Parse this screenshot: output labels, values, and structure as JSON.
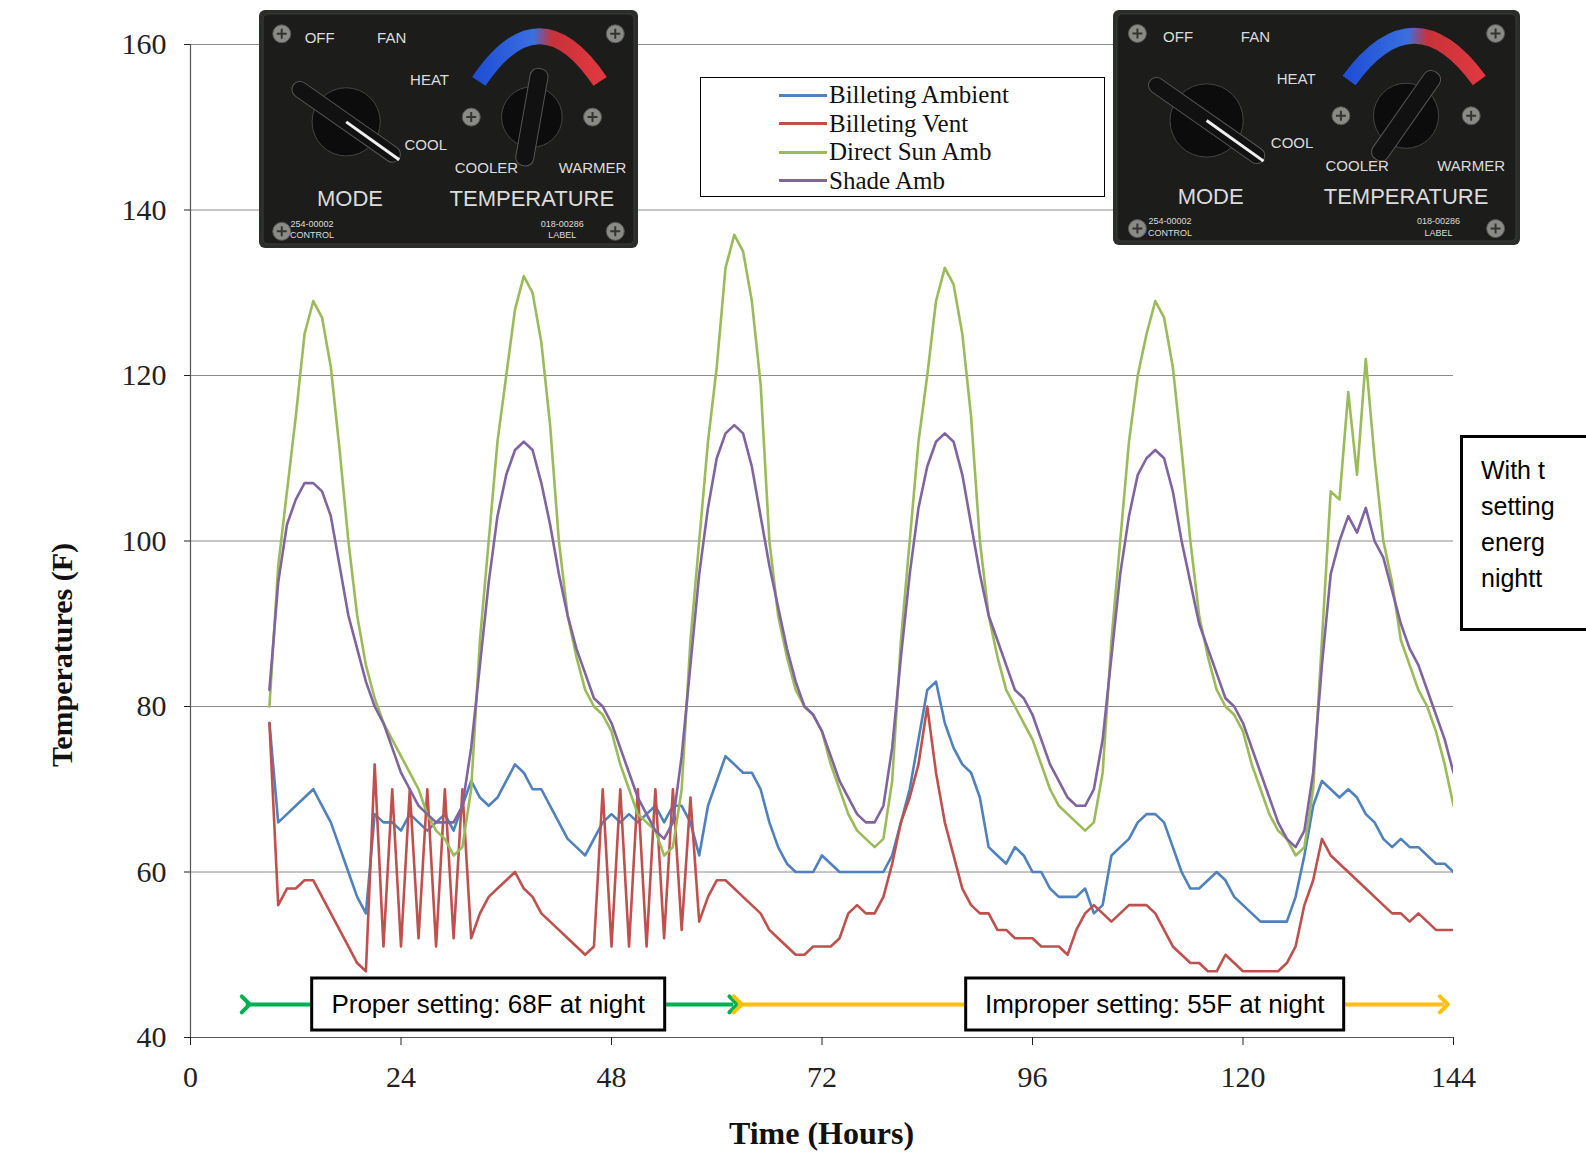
{
  "chart_data": {
    "type": "line",
    "x_label": "Time (Hours)",
    "y_label": "Temperatures (F)",
    "xlim": [
      0,
      144
    ],
    "xticks": [
      0,
      24,
      48,
      72,
      96,
      120,
      144
    ],
    "ylim": [
      40,
      160
    ],
    "yticks": [
      40,
      60,
      80,
      100,
      120,
      140,
      160
    ],
    "grid": true,
    "legend": "top",
    "x": [
      9,
      10,
      11,
      12,
      13,
      14,
      15,
      16,
      17,
      18,
      19,
      20,
      21,
      22,
      23,
      24,
      25,
      26,
      27,
      28,
      29,
      30,
      31,
      32,
      33,
      34,
      35,
      36,
      37,
      38,
      39,
      40,
      41,
      42,
      43,
      44,
      45,
      46,
      47,
      48,
      49,
      50,
      51,
      52,
      53,
      54,
      55,
      56,
      57,
      58,
      59,
      60,
      61,
      62,
      63,
      64,
      65,
      66,
      67,
      68,
      69,
      70,
      71,
      72,
      73,
      74,
      75,
      76,
      77,
      78,
      79,
      80,
      81,
      82,
      83,
      84,
      85,
      86,
      87,
      88,
      89,
      90,
      91,
      92,
      93,
      94,
      95,
      96,
      97,
      98,
      99,
      100,
      101,
      102,
      103,
      104,
      105,
      106,
      107,
      108,
      109,
      110,
      111,
      112,
      113,
      114,
      115,
      116,
      117,
      118,
      119,
      120,
      121,
      122,
      123,
      124,
      125,
      126,
      127,
      128,
      129,
      130,
      131,
      132,
      133,
      134,
      135,
      136,
      137,
      138,
      139,
      140,
      141,
      142,
      143,
      144
    ],
    "series": [
      {
        "name": "Billeting Ambient",
        "color": "#4f81bd",
        "values": [
          78,
          66,
          67,
          68,
          69,
          70,
          68,
          66,
          63,
          60,
          57,
          55,
          67,
          66,
          66,
          65,
          67,
          66,
          65,
          66,
          67,
          65,
          68,
          71,
          69,
          68,
          69,
          71,
          73,
          72,
          70,
          70,
          68,
          66,
          64,
          63,
          62,
          64,
          66,
          67,
          66,
          67,
          66,
          67,
          68,
          66,
          68,
          68,
          66,
          62,
          68,
          71,
          74,
          73,
          72,
          72,
          70,
          66,
          63,
          61,
          60,
          60,
          60,
          62,
          61,
          60,
          60,
          60,
          60,
          60,
          60,
          62,
          66,
          70,
          76,
          82,
          83,
          78,
          75,
          73,
          72,
          69,
          63,
          62,
          61,
          63,
          62,
          60,
          60,
          58,
          57,
          57,
          57,
          58,
          55,
          56,
          62,
          63,
          64,
          66,
          67,
          67,
          66,
          63,
          60,
          58,
          58,
          59,
          60,
          59,
          57,
          56,
          55,
          54,
          54,
          54,
          54,
          57,
          62,
          68,
          71,
          70,
          69,
          70,
          69,
          67,
          66,
          64,
          63,
          64,
          63,
          63,
          62,
          61,
          61,
          60
        ]
      },
      {
        "name": "Billeting Vent",
        "color": "#c0504d",
        "values": [
          78,
          56,
          58,
          58,
          59,
          59,
          57,
          55,
          53,
          51,
          49,
          48,
          73,
          51,
          70,
          51,
          70,
          52,
          70,
          51,
          70,
          52,
          70,
          52,
          55,
          57,
          58,
          59,
          60,
          58,
          57,
          55,
          54,
          53,
          52,
          51,
          50,
          51,
          70,
          51,
          70,
          51,
          70,
          51,
          70,
          52,
          70,
          53,
          69,
          54,
          57,
          59,
          59,
          58,
          57,
          56,
          55,
          53,
          52,
          51,
          50,
          50,
          51,
          51,
          51,
          52,
          55,
          56,
          55,
          55,
          57,
          61,
          66,
          69,
          73,
          80,
          72,
          66,
          62,
          58,
          56,
          55,
          55,
          53,
          53,
          52,
          52,
          52,
          51,
          51,
          51,
          50,
          53,
          55,
          56,
          55,
          54,
          55,
          56,
          56,
          56,
          55,
          53,
          51,
          50,
          49,
          49,
          48,
          48,
          50,
          49,
          48,
          48,
          48,
          48,
          48,
          49,
          51,
          56,
          59,
          64,
          62,
          61,
          60,
          59,
          58,
          57,
          56,
          55,
          55,
          54,
          55,
          54,
          53,
          53,
          53
        ]
      },
      {
        "name": "Direct Sun Amb",
        "color": "#9bbb59",
        "values": [
          80,
          97,
          106,
          115,
          125,
          129,
          127,
          121,
          111,
          100,
          91,
          85,
          81,
          78,
          76,
          74,
          72,
          70,
          67,
          65,
          64,
          62,
          63,
          70,
          88,
          100,
          112,
          120,
          128,
          132,
          130,
          124,
          114,
          100,
          91,
          86,
          82,
          80,
          79,
          77,
          73,
          70,
          67,
          66,
          65,
          62,
          63,
          70,
          88,
          100,
          112,
          121,
          133,
          137,
          135,
          129,
          119,
          100,
          91,
          86,
          82,
          80,
          79,
          77,
          73,
          70,
          67,
          65,
          64,
          63,
          64,
          71,
          88,
          100,
          112,
          120,
          129,
          133,
          131,
          125,
          115,
          100,
          91,
          86,
          82,
          80,
          78,
          76,
          73,
          70,
          68,
          67,
          66,
          65,
          66,
          72,
          88,
          100,
          112,
          120,
          125,
          129,
          127,
          121,
          111,
          100,
          91,
          86,
          82,
          80,
          79,
          77,
          73,
          70,
          67,
          65,
          64,
          62,
          63,
          70,
          88,
          106,
          105,
          118,
          108,
          122,
          110,
          100,
          95,
          88,
          85,
          82,
          80,
          77,
          73,
          68
        ]
      },
      {
        "name": "Shade Amb",
        "color": "#8064a2",
        "values": [
          82,
          95,
          102,
          105,
          107,
          107,
          106,
          103,
          97,
          91,
          87,
          83,
          80,
          78,
          75,
          72,
          70,
          68,
          67,
          66,
          66,
          66,
          68,
          75,
          85,
          95,
          103,
          108,
          111,
          112,
          111,
          107,
          102,
          96,
          91,
          87,
          84,
          81,
          80,
          78,
          75,
          72,
          69,
          67,
          65,
          64,
          66,
          74,
          85,
          96,
          104,
          110,
          113,
          114,
          113,
          109,
          103,
          97,
          92,
          87,
          83,
          80,
          79,
          77,
          74,
          71,
          69,
          67,
          66,
          66,
          68,
          75,
          86,
          96,
          104,
          109,
          112,
          113,
          112,
          108,
          102,
          96,
          91,
          88,
          85,
          82,
          81,
          79,
          76,
          73,
          71,
          69,
          68,
          68,
          70,
          76,
          86,
          96,
          103,
          108,
          110,
          111,
          110,
          106,
          100,
          95,
          90,
          87,
          84,
          81,
          80,
          78,
          75,
          72,
          69,
          66,
          64,
          63,
          65,
          72,
          85,
          96,
          100,
          103,
          101,
          104,
          100,
          98,
          94,
          90,
          87,
          85,
          82,
          79,
          76,
          72
        ]
      }
    ],
    "annotations": [
      {
        "text": "Proper setting: 68F at night",
        "color": "#00b050",
        "x_range": [
          6.3,
          61.9
        ],
        "label_x": 34,
        "y": 44
      },
      {
        "text": "Improper setting: 55F at night",
        "color": "#ffc000",
        "x_range": [
          62.4,
          142.9
        ],
        "label_x": 110,
        "y": 44
      }
    ],
    "side_note": [
      "With t",
      "setting",
      "energ",
      "nightt"
    ],
    "thermostat_panels": [
      {
        "mode_positions": [
          "OFF",
          "FAN",
          "HEAT",
          "COOL"
        ],
        "temperature_ends": [
          "COOLER",
          "WARMER"
        ],
        "mode_title": "MODE",
        "temperature_title": "TEMPERATURE",
        "part_numbers": [
          [
            "254-00002",
            "CONTROL"
          ],
          [
            "018-00286",
            "LABEL"
          ]
        ]
      },
      {
        "mode_positions": [
          "OFF",
          "FAN",
          "HEAT",
          "COOL"
        ],
        "temperature_ends": [
          "COOLER",
          "WARMER"
        ],
        "mode_title": "MODE",
        "temperature_title": "TEMPERATURE",
        "part_numbers": [
          [
            "254-00002",
            "CONTROL"
          ],
          [
            "018-00286",
            "LABEL"
          ]
        ]
      }
    ]
  }
}
